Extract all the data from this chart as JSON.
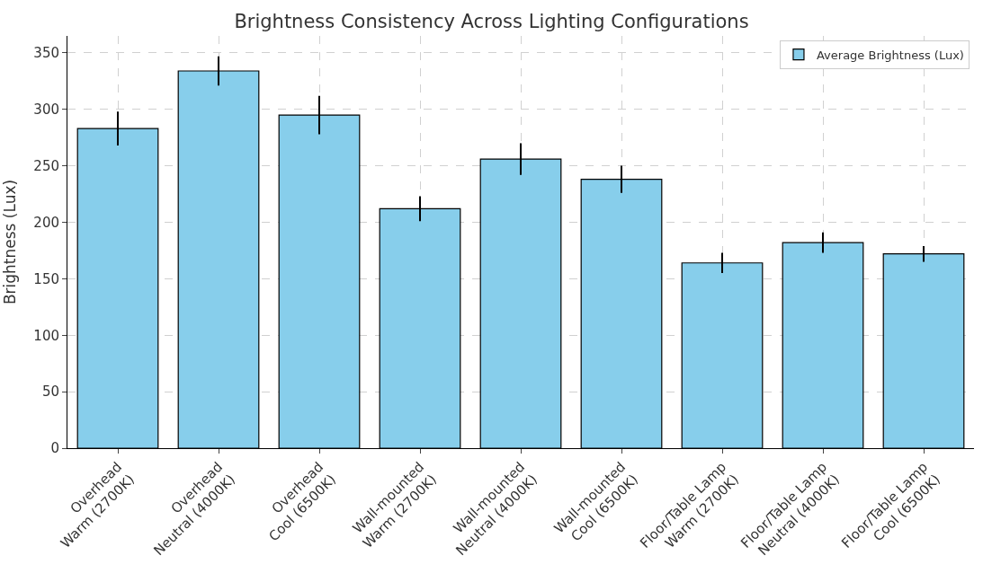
{
  "chart_data": {
    "type": "bar",
    "title": "Brightness Consistency Across Lighting Configurations",
    "ylabel": "Brightness (Lux)",
    "categories": [
      "Overhead\nWarm (2700K)",
      "Overhead\nNeutral (4000K)",
      "Overhead\nCool (6500K)",
      "Wall-mounted\nWarm (2700K)",
      "Wall-mounted\nNeutral (4000K)",
      "Wall-mounted\nCool (6500K)",
      "Floor/Table Lamp\nWarm (2700K)",
      "Floor/Table Lamp\nNeutral (4000K)",
      "Floor/Table Lamp\nCool (6500K)"
    ],
    "series": [
      {
        "name": "Average Brightness (Lux)",
        "color": "#87ceeb",
        "values": [
          283,
          334,
          295,
          212,
          256,
          238,
          164,
          182,
          172
        ],
        "errors": [
          15,
          13,
          17,
          11,
          14,
          12,
          9,
          9,
          7
        ]
      }
    ],
    "ylim": [
      0,
      365
    ],
    "yticks": [
      0,
      50,
      100,
      150,
      200,
      250,
      300,
      350
    ],
    "grid": true,
    "legend": "top right"
  }
}
